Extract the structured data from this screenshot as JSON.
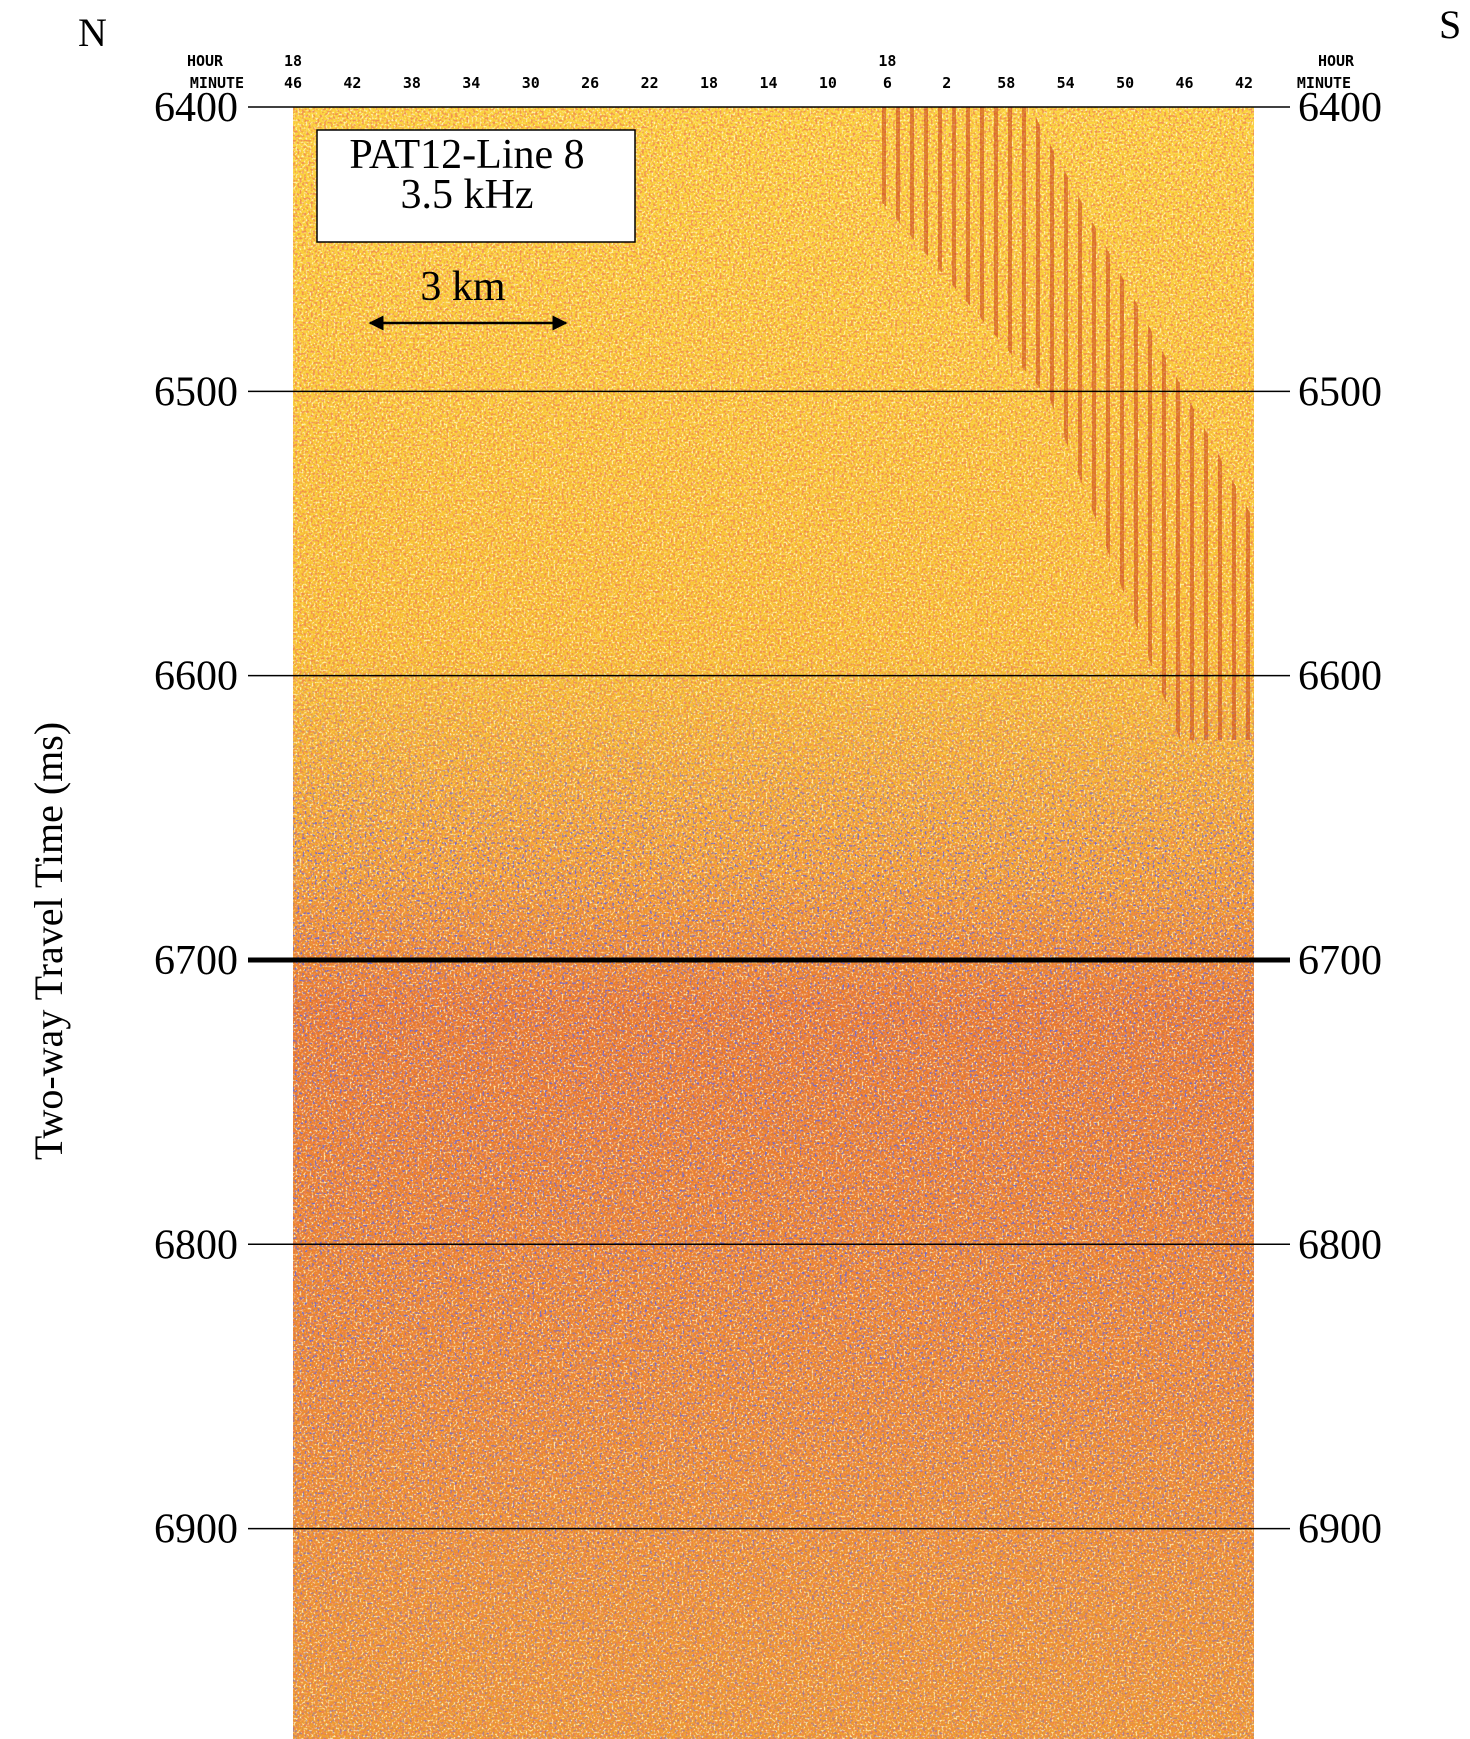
{
  "chart_data": {
    "type": "seismic",
    "title": "PAT12-Line 8",
    "subtitle": "3.5 kHz",
    "y_label": "Two-way Travel Time (ms)",
    "left_direction": "N",
    "right_direction": "S",
    "scale_bar": "3 km",
    "hour_axis_label": "HOUR",
    "minute_axis_label": "MINUTE",
    "categories": [
      "46",
      "42",
      "38",
      "34",
      "30",
      "26",
      "22",
      "18",
      "14",
      "10",
      "6",
      "2",
      "58",
      "54",
      "50",
      "46",
      "42"
    ],
    "hour_labels": [
      "18",
      null,
      null,
      null,
      null,
      null,
      null,
      null,
      null,
      null,
      "18",
      null,
      null,
      null,
      null,
      null,
      null
    ],
    "ylim": [
      6400,
      6974
    ],
    "yticks": [
      6400,
      6500,
      6600,
      6700,
      6800,
      6900
    ],
    "bold_ytick": 6700,
    "grid": true
  }
}
